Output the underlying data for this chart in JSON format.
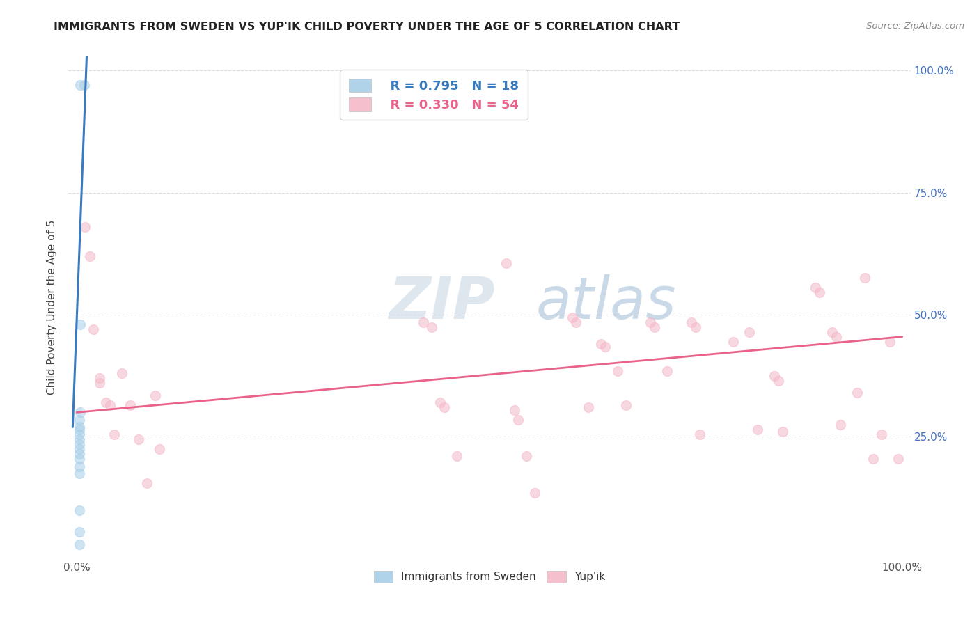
{
  "title": "IMMIGRANTS FROM SWEDEN VS YUP'IK CHILD POVERTY UNDER THE AGE OF 5 CORRELATION CHART",
  "source": "Source: ZipAtlas.com",
  "ylabel": "Child Poverty Under the Age of 5",
  "watermark_zip": "ZIP",
  "watermark_atlas": "atlas",
  "legend_blue_r": "R = 0.795",
  "legend_blue_n": "N = 18",
  "legend_pink_r": "R = 0.330",
  "legend_pink_n": "N = 54",
  "legend_label_blue": "Immigrants from Sweden",
  "legend_label_pink": "Yup'ik",
  "blue_color": "#a8cfe8",
  "pink_color": "#f4b8c8",
  "blue_line_color": "#3a7abf",
  "pink_line_color": "#e8628a",
  "blue_scatter": [
    [
      0.004,
      0.97
    ],
    [
      0.009,
      0.97
    ],
    [
      0.004,
      0.48
    ],
    [
      0.004,
      0.3
    ],
    [
      0.003,
      0.285
    ],
    [
      0.003,
      0.27
    ],
    [
      0.003,
      0.265
    ],
    [
      0.003,
      0.255
    ],
    [
      0.003,
      0.245
    ],
    [
      0.003,
      0.235
    ],
    [
      0.003,
      0.225
    ],
    [
      0.003,
      0.215
    ],
    [
      0.003,
      0.205
    ],
    [
      0.003,
      0.19
    ],
    [
      0.003,
      0.175
    ],
    [
      0.003,
      0.1
    ],
    [
      0.003,
      0.055
    ],
    [
      0.003,
      0.03
    ]
  ],
  "pink_scatter": [
    [
      0.01,
      0.68
    ],
    [
      0.016,
      0.62
    ],
    [
      0.02,
      0.47
    ],
    [
      0.028,
      0.37
    ],
    [
      0.028,
      0.36
    ],
    [
      0.035,
      0.32
    ],
    [
      0.04,
      0.315
    ],
    [
      0.045,
      0.255
    ],
    [
      0.055,
      0.38
    ],
    [
      0.065,
      0.315
    ],
    [
      0.075,
      0.245
    ],
    [
      0.085,
      0.155
    ],
    [
      0.095,
      0.335
    ],
    [
      0.1,
      0.225
    ],
    [
      0.42,
      0.485
    ],
    [
      0.43,
      0.475
    ],
    [
      0.44,
      0.32
    ],
    [
      0.445,
      0.31
    ],
    [
      0.46,
      0.21
    ],
    [
      0.52,
      0.605
    ],
    [
      0.53,
      0.305
    ],
    [
      0.535,
      0.285
    ],
    [
      0.545,
      0.21
    ],
    [
      0.555,
      0.135
    ],
    [
      0.6,
      0.495
    ],
    [
      0.605,
      0.485
    ],
    [
      0.62,
      0.31
    ],
    [
      0.635,
      0.44
    ],
    [
      0.64,
      0.435
    ],
    [
      0.655,
      0.385
    ],
    [
      0.665,
      0.315
    ],
    [
      0.695,
      0.485
    ],
    [
      0.7,
      0.475
    ],
    [
      0.715,
      0.385
    ],
    [
      0.745,
      0.485
    ],
    [
      0.75,
      0.475
    ],
    [
      0.755,
      0.255
    ],
    [
      0.795,
      0.445
    ],
    [
      0.815,
      0.465
    ],
    [
      0.825,
      0.265
    ],
    [
      0.845,
      0.375
    ],
    [
      0.85,
      0.365
    ],
    [
      0.855,
      0.26
    ],
    [
      0.895,
      0.555
    ],
    [
      0.9,
      0.545
    ],
    [
      0.915,
      0.465
    ],
    [
      0.92,
      0.455
    ],
    [
      0.925,
      0.275
    ],
    [
      0.945,
      0.34
    ],
    [
      0.955,
      0.575
    ],
    [
      0.965,
      0.205
    ],
    [
      0.975,
      0.255
    ],
    [
      0.985,
      0.445
    ],
    [
      0.995,
      0.205
    ]
  ],
  "blue_line_x": [
    -0.005,
    0.012
  ],
  "blue_line_y": [
    0.27,
    1.03
  ],
  "pink_line_x": [
    0.0,
    1.0
  ],
  "pink_line_y": [
    0.3,
    0.455
  ],
  "xlim": [
    -0.01,
    1.01
  ],
  "ylim": [
    0.0,
    1.03
  ],
  "yticks": [
    0.0,
    0.25,
    0.5,
    0.75,
    1.0
  ],
  "ytick_labels_right": [
    "",
    "25.0%",
    "50.0%",
    "75.0%",
    "100.0%"
  ],
  "xtick_positions": [
    0.0,
    0.25,
    0.5,
    0.75,
    1.0
  ],
  "background_color": "#ffffff",
  "grid_color": "#dddddd",
  "marker_size": 100,
  "marker_alpha": 0.55
}
